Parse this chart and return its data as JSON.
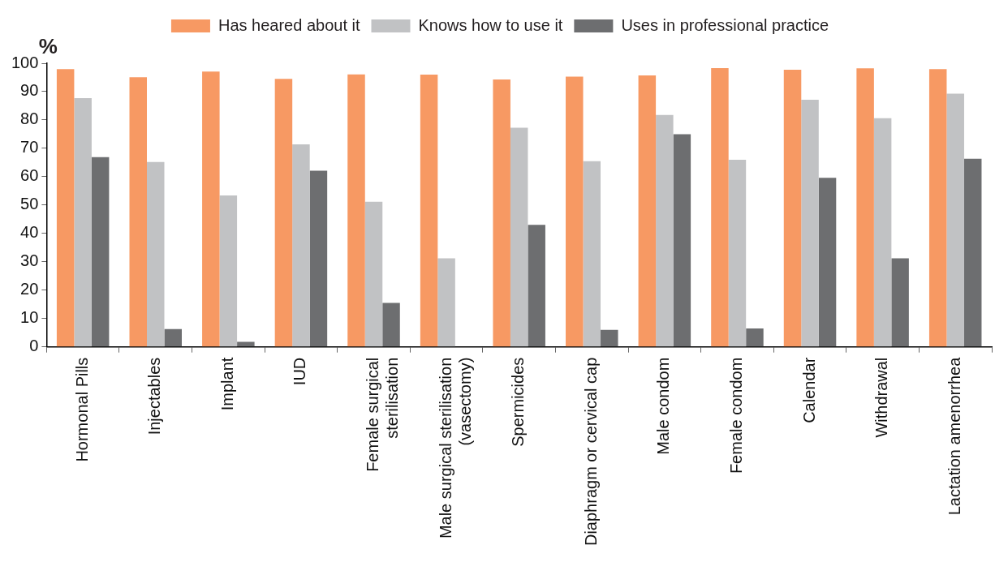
{
  "chart_data": {
    "type": "bar",
    "ylabel": "%",
    "categories": [
      "Hormonal Pills",
      "Injectables",
      "Implant",
      "IUD",
      "Female surgical sterilisation",
      "Male surgical sterilisation (vasectomy)",
      "Spermicides",
      "Diaphragm or cervical cap",
      "Male condom",
      "Female condom",
      "Calendar",
      "Withdrawal",
      "Lactation amenorrhea"
    ],
    "series": [
      {
        "name": "Has heared about it",
        "color": "#f79963",
        "values": [
          97.9,
          95.1,
          97.1,
          94.5,
          96.1,
          96.0,
          94.3,
          95.3,
          95.7,
          98.3,
          97.7,
          98.2,
          97.9
        ]
      },
      {
        "name": "Knows how to use it",
        "color": "#c1c2c4",
        "values": [
          87.7,
          65.2,
          53.4,
          71.4,
          51.2,
          31.2,
          77.3,
          65.5,
          81.8,
          66.0,
          87.1,
          80.6,
          89.3
        ]
      },
      {
        "name": "Uses in professional practice",
        "color": "#6d6e70",
        "values": [
          66.9,
          6.3,
          1.8,
          62.1,
          15.5,
          null,
          43.0,
          6.0,
          75.0,
          6.5,
          59.6,
          31.2,
          66.3
        ]
      }
    ],
    "ylim": [
      0,
      100
    ],
    "yticks": [
      0,
      10,
      20,
      30,
      40,
      50,
      60,
      70,
      80,
      90,
      100
    ],
    "legend": "top"
  }
}
